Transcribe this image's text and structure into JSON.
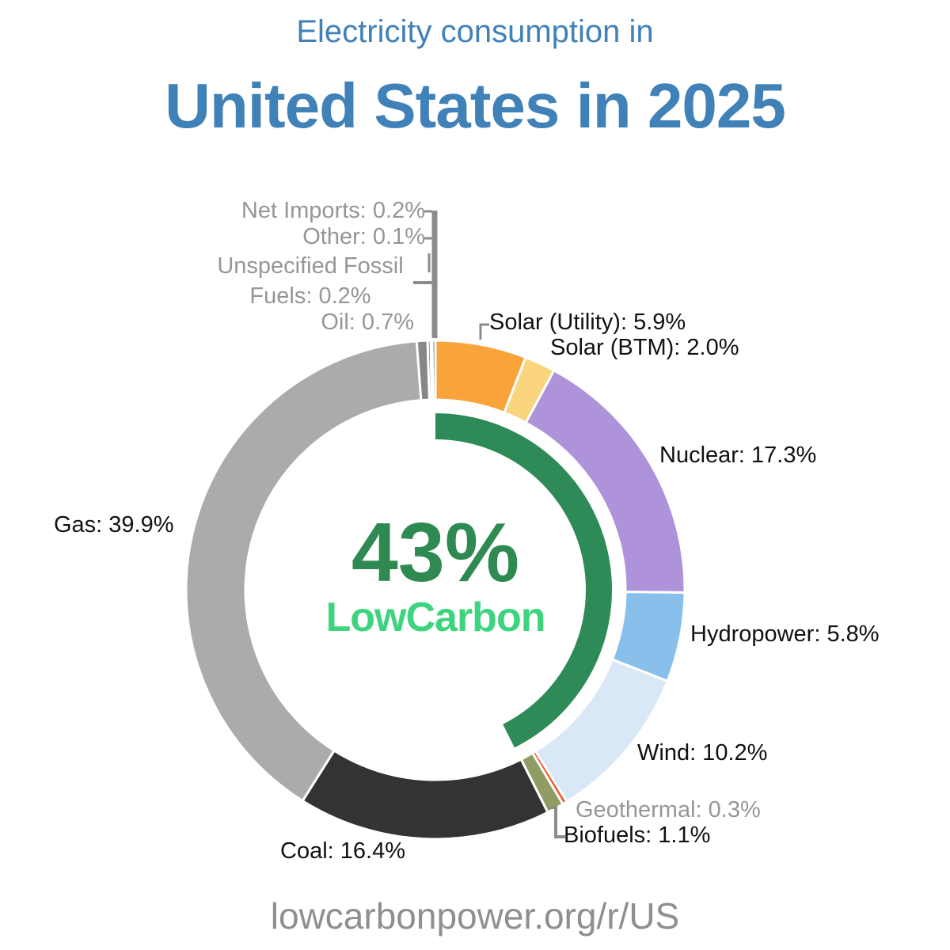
{
  "title": {
    "line1": "Electricity consumption in",
    "line2": "United States in 2025"
  },
  "center": {
    "percent": "43%",
    "label": "LowCarbon"
  },
  "footer": {
    "url": "lowcarbonpower.org/r/US"
  },
  "colors": {
    "title_blue": "#4081b8",
    "lowcarbon_dark_green": "#2f8a52",
    "lowcarbon_bright_green": "#3ed47f",
    "gray_label": "#969696",
    "leader_line": "#8c8c8c"
  },
  "chart_data": {
    "type": "pie",
    "subtype": "donut",
    "title": "Electricity consumption in United States in 2025",
    "unit": "%",
    "start_angle_deg": 0,
    "direction": "clockwise",
    "segments": [
      {
        "name": "Solar (Utility)",
        "value": 5.9,
        "color": "#f9a33b",
        "label": "Solar (Utility): 5.9%"
      },
      {
        "name": "Solar (BTM)",
        "value": 2.0,
        "color": "#fbd57e",
        "label": "Solar (BTM): 2.0%"
      },
      {
        "name": "Nuclear",
        "value": 17.3,
        "color": "#ae93da",
        "label": "Nuclear: 17.3%"
      },
      {
        "name": "Hydropower",
        "value": 5.8,
        "color": "#88bfeb",
        "label": "Hydropower: 5.8%"
      },
      {
        "name": "Wind",
        "value": 10.2,
        "color": "#d9e8f6",
        "label": "Wind: 10.2%"
      },
      {
        "name": "Geothermal",
        "value": 0.3,
        "color": "#f4582b",
        "label": "Geothermal: 0.3%"
      },
      {
        "name": "Biofuels",
        "value": 1.1,
        "color": "#8f9d64",
        "label": "Biofuels: 1.1%"
      },
      {
        "name": "Coal",
        "value": 16.4,
        "color": "#333333",
        "label": "Coal: 16.4%"
      },
      {
        "name": "Gas",
        "value": 39.9,
        "color": "#ababab",
        "label": "Gas: 39.9%"
      },
      {
        "name": "Oil",
        "value": 0.7,
        "color": "#878787",
        "label": "Oil: 0.7%"
      },
      {
        "name": "Unspecified Fossil Fuels",
        "value": 0.2,
        "color": "#6f6f6f",
        "label": "Unspecified Fossil Fuels: 0.2%"
      },
      {
        "name": "Other",
        "value": 0.1,
        "color": "#7a7a7a",
        "label": "Other: 0.1%"
      },
      {
        "name": "Net Imports",
        "value": 0.2,
        "color": "#646464",
        "label": "Net Imports: 0.2%"
      }
    ],
    "inner_ring": {
      "name": "LowCarbon share",
      "sweep_percent": 42.6,
      "display_percent": "43%",
      "color": "#2e8a56"
    },
    "legend_position": "around"
  }
}
